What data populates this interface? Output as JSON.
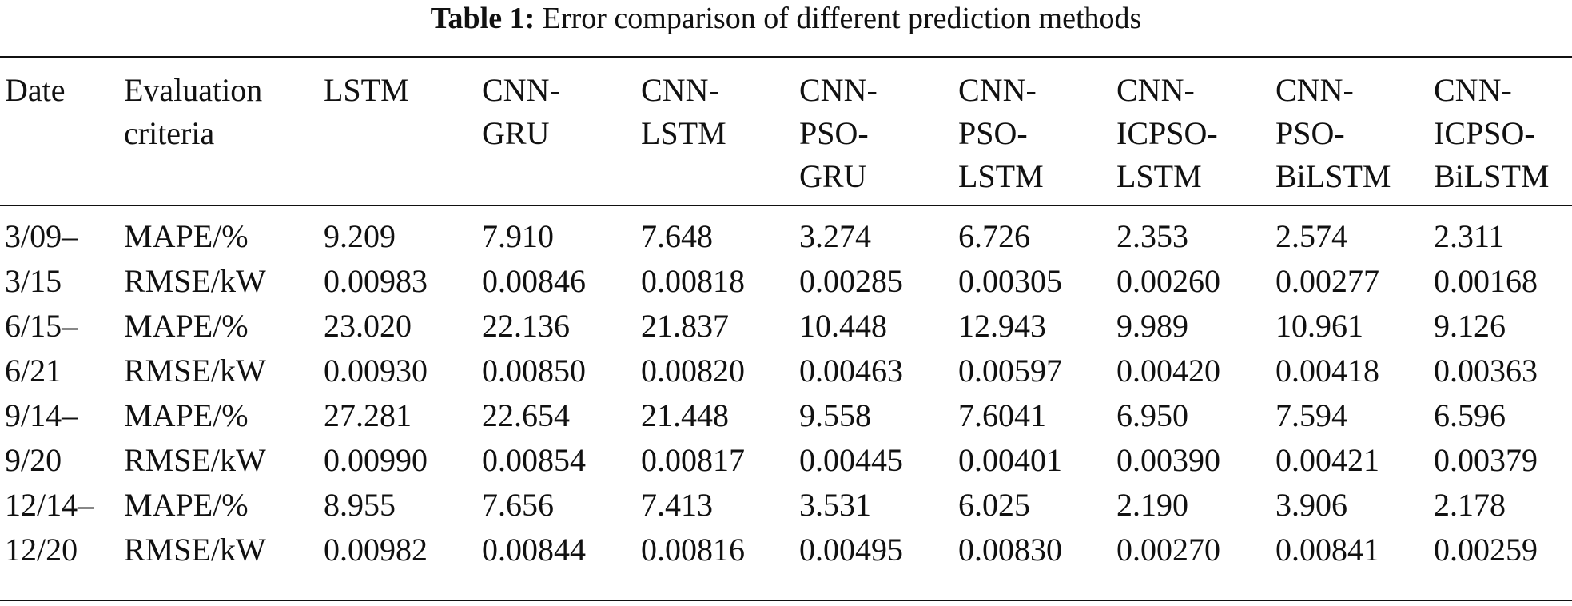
{
  "caption": {
    "label": "Table 1:",
    "text": "Error comparison of different prediction methods"
  },
  "table": {
    "headers": [
      [
        "Date"
      ],
      [
        "Evaluation",
        "criteria"
      ],
      [
        "LSTM"
      ],
      [
        "CNN-",
        "GRU"
      ],
      [
        "CNN-",
        "LSTM"
      ],
      [
        "CNN-",
        "PSO-",
        "GRU"
      ],
      [
        "CNN-",
        "PSO-",
        "LSTM"
      ],
      [
        "CNN-",
        "ICPSO-",
        "LSTM"
      ],
      [
        "CNN-",
        "PSO-",
        "BiLSTM"
      ],
      [
        "CNN-",
        "ICPSO-",
        "BiLSTM"
      ]
    ],
    "rows": [
      [
        "3/09–",
        "MAPE/%",
        "9.209",
        "7.910",
        "7.648",
        "3.274",
        "6.726",
        "2.353",
        "2.574",
        "2.311"
      ],
      [
        "3/15",
        "RMSE/kW",
        "0.00983",
        "0.00846",
        "0.00818",
        "0.00285",
        "0.00305",
        "0.00260",
        "0.00277",
        "0.00168"
      ],
      [
        "6/15–",
        "MAPE/%",
        "23.020",
        "22.136",
        "21.837",
        "10.448",
        "12.943",
        "9.989",
        "10.961",
        "9.126"
      ],
      [
        "6/21",
        "RMSE/kW",
        "0.00930",
        "0.00850",
        "0.00820",
        "0.00463",
        "0.00597",
        "0.00420",
        "0.00418",
        "0.00363"
      ],
      [
        "9/14–",
        "MAPE/%",
        "27.281",
        "22.654",
        "21.448",
        "9.558",
        "7.6041",
        "6.950",
        "7.594",
        "6.596"
      ],
      [
        "9/20",
        "RMSE/kW",
        "0.00990",
        "0.00854",
        "0.00817",
        "0.00445",
        "0.00401",
        "0.00390",
        "0.00421",
        "0.00379"
      ],
      [
        "12/14–",
        "MAPE/%",
        "8.955",
        "7.656",
        "7.413",
        "3.531",
        "6.025",
        "2.190",
        "3.906",
        "2.178"
      ],
      [
        "12/20",
        "RMSE/kW",
        "0.00982",
        "0.00844",
        "0.00816",
        "0.00495",
        "0.00830",
        "0.00270",
        "0.00841",
        "0.00259"
      ]
    ]
  }
}
